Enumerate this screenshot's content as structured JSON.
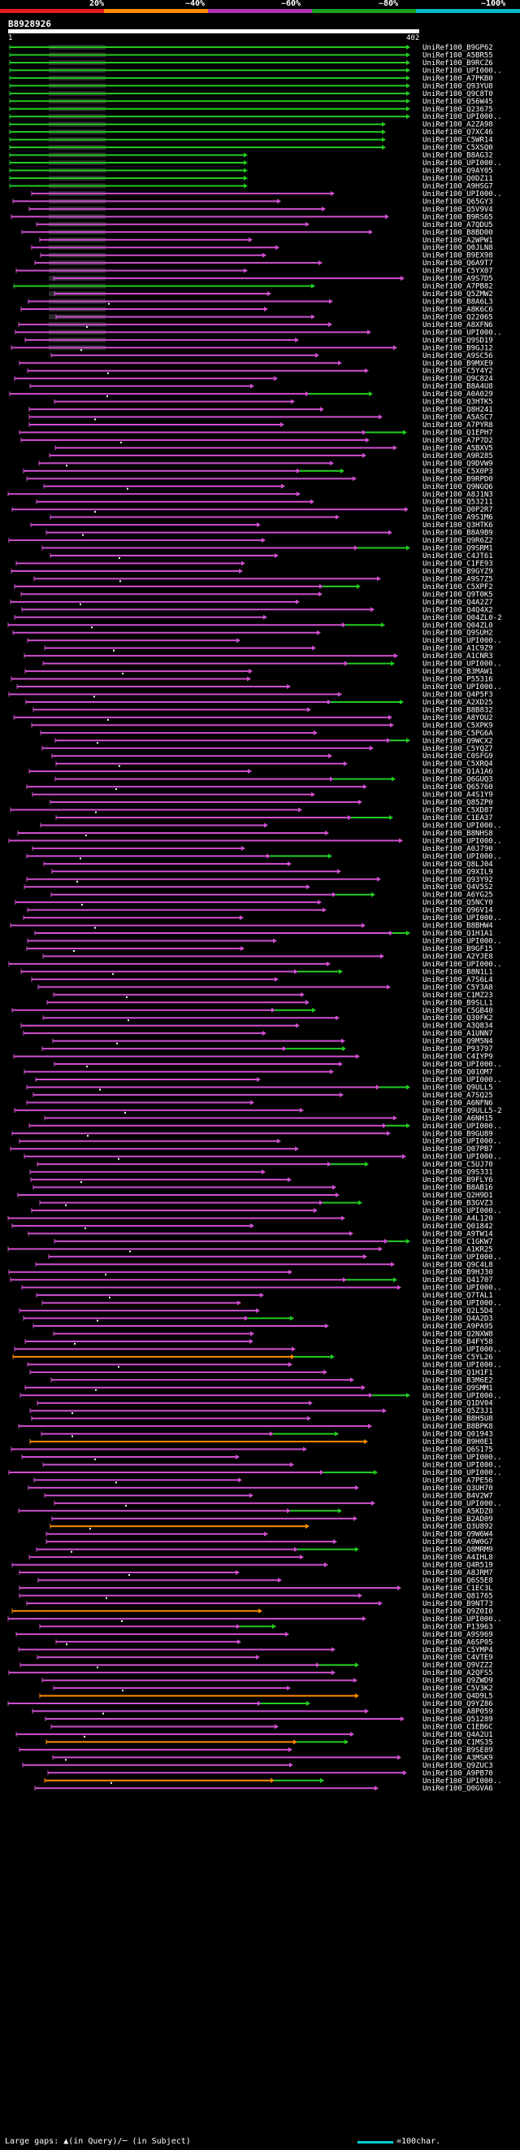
{
  "legend": {
    "labels": [
      "20%",
      "~40%",
      "~60%",
      "~80%",
      "~100%"
    ],
    "segments": [
      {
        "color": "#e41a1c",
        "name": "bin-20"
      },
      {
        "color": "#ff8c00",
        "name": "bin-40"
      },
      {
        "color": "#b030b0",
        "name": "bin-60"
      },
      {
        "color": "#1aa01a",
        "name": "bin-80"
      },
      {
        "color": "#00b8c8",
        "name": "bin-100"
      }
    ]
  },
  "query": {
    "id": "B8928926",
    "start": "1",
    "end": "402"
  },
  "colors": {
    "magenta": "#d050d0",
    "green": "#22cc22",
    "orange": "#ff8c00",
    "cyan": "#40c0e0",
    "gap": "#505050"
  },
  "hits": [
    "UniRef100_B9GP62",
    "UniRef100_A5BR55",
    "UniRef100_B9RCZ6",
    "UniRef100_UPI000..",
    "UniRef100_A7PKB0",
    "UniRef100_Q93YU8",
    "UniRef100_Q9C8T0",
    "UniRef100_Q56W45",
    "UniRef100_Q23675",
    "UniRef100_UPI000..",
    "UniRef100_A2ZA98",
    "UniRef100_Q7XC46",
    "UniRef100_C5WR14",
    "UniRef100_C5XSQ0",
    "UniRef100_B8AG32",
    "UniRef100_UPI000..",
    "UniRef100_Q9AY05",
    "UniRef100_Q0DZ11",
    "UniRef100_A9HSG7",
    "UniRef100_UPI000..",
    "UniRef100_Q65GY3",
    "UniRef100_Q5V9V4",
    "UniRef100_B9RS65",
    "UniRef100_A7QDU5",
    "UniRef100_B8BD00",
    "UniRef100_A2WPW1",
    "UniRef100_Q0JLN8",
    "UniRef100_B9EX98",
    "UniRef100_Q6A9T7",
    "UniRef100_C5YX07",
    "UniRef100_A9S7D5",
    "UniRef100_A7PB82",
    "UniRef100_Q5ZMW2",
    "UniRef100_B8A6L3",
    "UniRef100_A8K6C6",
    "UniRef100_Q22065",
    "UniRef100_A8XFN6",
    "UniRef100_UPI000..",
    "UniRef100_Q9SD19",
    "UniRef100_B9GJ12",
    "UniRef100_A9SC56",
    "UniRef100_B9MXE9",
    "UniRef100_C5Y4Y2",
    "UniRef100_Q9C824",
    "UniRef100_B8A4U8",
    "UniRef100_A0A029",
    "UniRef100_Q3HTK5",
    "UniRef100_Q8H241",
    "UniRef100_A5ASC7",
    "UniRef100_A7PYR8",
    "UniRef100_Q1EPH7",
    "UniRef100_A7P7D2",
    "UniRef100_A5BXV5",
    "UniRef100_A9R285",
    "UniRef100_Q9DVW9",
    "UniRef100_C5X0P3",
    "UniRef100_B9RPD0",
    "UniRef100_Q9NGQ6",
    "UniRef100_A8J1N3",
    "UniRef100_Q53211",
    "UniRef100_Q0P2R7",
    "UniRef100_A9S1M6",
    "UniRef100_Q3HTK6",
    "UniRef100_B8A9B9",
    "UniRef100_Q9R6Z2",
    "UniRef100_Q9SRM1",
    "UniRef100_C4JT61",
    "UniRef100_C1FE93",
    "UniRef100_B9GYZ9",
    "UniRef100_A9S7Z5",
    "UniRef100_C5XPF2",
    "UniRef100_Q9T0K5",
    "UniRef100_Q4A2Z7",
    "UniRef100_Q4Q4X2",
    "UniRef100_Q04ZL0-2",
    "UniRef100_Q04ZL0",
    "UniRef100_Q9SUH2",
    "UniRef100_UPI000..",
    "UniRef100_A1C9Z9",
    "UniRef100_A1CNR3",
    "UniRef100_UPI000..",
    "UniRef100_B3MAW1",
    "UniRef100_P55316",
    "UniRef100_UPI000..",
    "UniRef100_Q4P5F3",
    "UniRef100_A2XD25",
    "UniRef100_B8B832",
    "UniRef100_A8YOU2",
    "UniRef100_C5XPK9",
    "UniRef100_C5PG6A",
    "UniRef100_Q9WCX2",
    "UniRef100_C5YQZ7",
    "UniRef100_C0SFG9",
    "UniRef100_C5XRQ4",
    "UniRef100_Q1A1A6",
    "UniRef100_Q6GUQ3",
    "UniRef100_Q65760",
    "UniRef100_A4S1Y9",
    "UniRef100_Q85ZP0",
    "UniRef100_C5XD87",
    "UniRef100_C1EA37",
    "UniRef100_UPI000..",
    "UniRef100_B8NHS8",
    "UniRef100_UPI000..",
    "UniRef100_A0J790",
    "UniRef100_UPI000..",
    "UniRef100_Q8LJ04",
    "UniRef100_Q9XIL9",
    "UniRef100_Q93Y92",
    "UniRef100_Q4V5S2",
    "UniRef100_A6YG25",
    "UniRef100_Q5NCY0",
    "UniRef100_Q96V14",
    "UniRef100_UPI000..",
    "UniRef100_B8BHW4",
    "UniRef100_Q1H1A1",
    "UniRef100_UPI000..",
    "UniRef100_B9GF15",
    "UniRef100_A2YJE8",
    "UniRef100_UPI000..",
    "UniRef100_B8N1L1",
    "UniRef100_A7S6L4",
    "UniRef100_C5Y3A8",
    "UniRef100_C1MZ23",
    "UniRef100_B9SLL1",
    "UniRef100_C5GB40",
    "UniRef100_Q30FK2",
    "UniRef100_A3Q834",
    "UniRef100_A1UNN7",
    "UniRef100_Q9M5N4",
    "UniRef100_P93797",
    "UniRef100_C4IYP9",
    "UniRef100_UPI000..",
    "UniRef100_Q01OM7",
    "UniRef100_UPI000..",
    "UniRef100_Q9ULL5",
    "UniRef100_A7SQ25",
    "UniRef100_A6NFN6",
    "UniRef100_Q9ULL5-2",
    "UniRef100_A6NH15",
    "UniRef100_UPI000..",
    "UniRef100_B9GU89",
    "UniRef100_UPI000..",
    "UniRef100_Q07PB7",
    "UniRef100_UPI000..",
    "UniRef100_C5UJ70",
    "UniRef100_Q9S331",
    "UniRef100_B9FLY6",
    "UniRef100_B8AB16",
    "UniRef100_Q2H9D1",
    "UniRef100_B3GVZ3",
    "UniRef100_UPI000..",
    "UniRef100_A4L120",
    "UniRef100_Q01842",
    "UniRef100_A9TW14",
    "UniRef100_C1GKW7",
    "UniRef100_A1KR25",
    "UniRef100_UPI000..",
    "UniRef100_Q9C4L8",
    "UniRef100_B9HJ30",
    "UniRef100_Q41707",
    "UniRef100_UPI000..",
    "UniRef100_Q7TAL1",
    "UniRef100_UPI000..",
    "UniRef100_Q2L5D4",
    "UniRef100_Q4A2D3",
    "UniRef100_A9PA95",
    "UniRef100_Q2NXW8",
    "UniRef100_B4FY58",
    "UniRef100_UPI000..",
    "UniRef100_C5YL26",
    "UniRef100_UPI000..",
    "UniRef100_Q1H1F1",
    "UniRef100_B3M6E2",
    "UniRef100_Q9SMM1",
    "UniRef100_UPI000..",
    "UniRef100_Q1DV04",
    "UniRef100_Q5Z3J1",
    "UniRef100_B8H5U8",
    "UniRef100_B8BPK8",
    "UniRef100_Q01943",
    "UniRef100_B9H0E1",
    "UniRef100_Q6S175",
    "UniRef100_UPI000..",
    "UniRef100_UPI000..",
    "UniRef100_UPI000..",
    "UniRef100_A7PE56",
    "UniRef100_Q3UH70",
    "UniRef100_B4V2W7",
    "UniRef100_UPI000..",
    "UniRef100_A5KDZ0",
    "UniRef100_B2AD09",
    "UniRef100_Q3U892",
    "UniRef100_Q9W6W4",
    "UniRef100_A9W0G7",
    "UniRef100_Q8MRM9",
    "UniRef100_A4IHL8",
    "UniRef100_Q4R519",
    "UniRef100_A8JRM7",
    "UniRef100_Q6S5E8",
    "UniRef100_C1EC3L",
    "UniRef100_Q81765",
    "UniRef100_B9NT73",
    "UniRef100_Q9Z0I0",
    "UniRef100_UPI000..",
    "UniRef100_P13963",
    "UniRef100_A9S969",
    "UniRef100_A6SP05",
    "UniRef100_C5YMP4",
    "UniRef100_C4VTE9",
    "UniRef100_Q9VZZ2",
    "UniRef100_A2QFS5",
    "UniRef100_Q9ZWD9",
    "UniRef100_C5V3K2",
    "UniRef100_Q4D9L5",
    "UniRef100_Q9YZ86",
    "UniRef100_A8P059",
    "UniRef100_Q51289",
    "UniRef100_C1EB6C",
    "UniRef100_Q4A2U1",
    "UniRef100_C1MS35",
    "UniRef100_B9SE89",
    "UniRef100_A3MSK9",
    "UniRef100_Q9ZUC3",
    "UniRef100_A9PB70",
    "UniRef100_UPI000..",
    "UniRef100_Q0GVA6"
  ],
  "footer": {
    "gaps": "Large gaps: ▲(in Query)/─ (in Subject)",
    "scale": "=100char."
  }
}
